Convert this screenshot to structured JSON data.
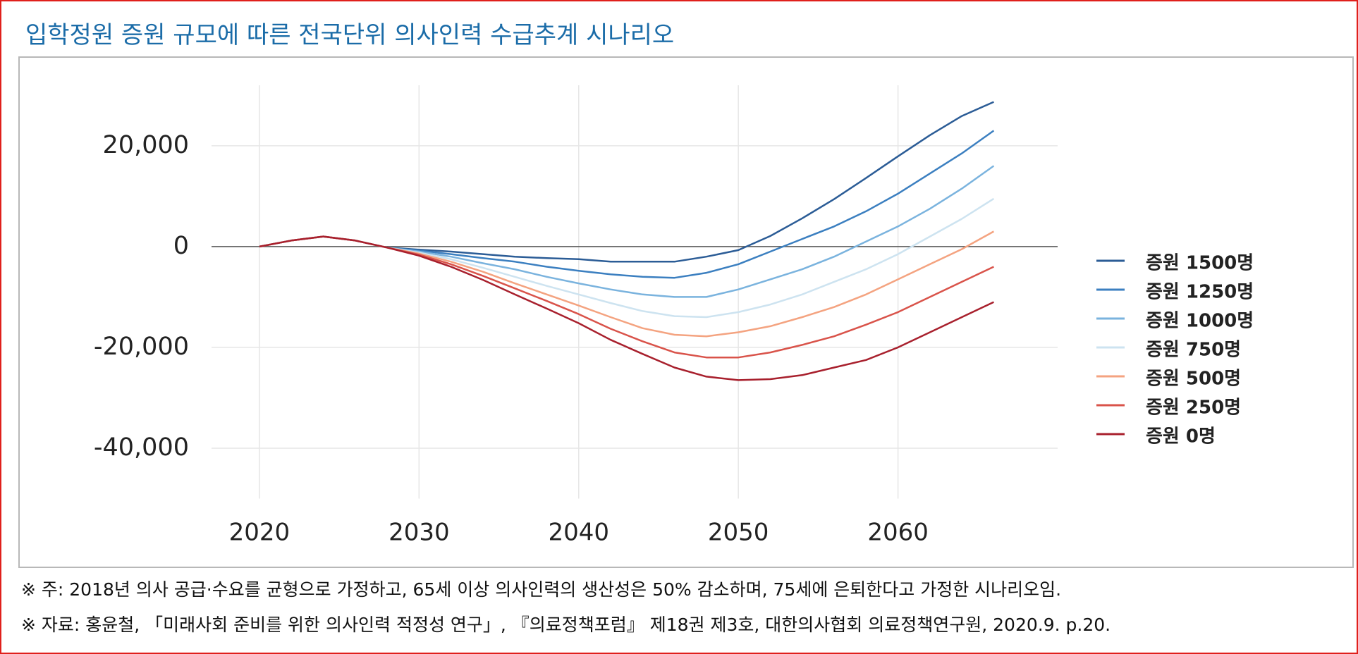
{
  "title": "입학정원 증원 규모에 따른 전국단위 의사인력 수급추계 시나리오",
  "notes": [
    "※ 주: 2018년 의사 공급·수요를 균형으로 가정하고, 65세 이상 의사인력의 생산성은 50% 감소하며, 75세에 은퇴한다고 가정한 시나리오임.",
    "※ 자료: 홍윤철, 「미래사회 준비를 위한 의사인력 적정성 연구」, 『의료정책포럼』 제18권 제3호, 대한의사협회 의료정책연구원, 2020.9. p.20."
  ],
  "chart_data": {
    "type": "line",
    "x": [
      2020,
      2022,
      2024,
      2026,
      2028,
      2030,
      2032,
      2034,
      2036,
      2038,
      2040,
      2042,
      2044,
      2046,
      2048,
      2050,
      2052,
      2054,
      2056,
      2058,
      2060,
      2062,
      2064,
      2066
    ],
    "xlim": [
      2017,
      2070
    ],
    "xticks": [
      2020,
      2030,
      2040,
      2050,
      2060
    ],
    "ylim": [
      -50000,
      32000
    ],
    "yticks": [
      {
        "value": -40000,
        "label": "-40,000"
      },
      {
        "value": -20000,
        "label": "-20,000"
      },
      0,
      {
        "value": 20000,
        "label": "20,000"
      }
    ],
    "grid": true,
    "series": [
      {
        "name": "증원 1500명",
        "color": "#2b5c96",
        "values": [
          0,
          1200,
          2000,
          1200,
          -200,
          -600,
          -1000,
          -1500,
          -2000,
          -2300,
          -2500,
          -3000,
          -3000,
          -3000,
          -2000,
          -700,
          2100,
          5600,
          9400,
          13600,
          17900,
          22100,
          25900,
          28700
        ]
      },
      {
        "name": "증원 1250명",
        "color": "#3b7fc0",
        "values": [
          0,
          1200,
          2000,
          1200,
          -200,
          -800,
          -1500,
          -2300,
          -3000,
          -4000,
          -4800,
          -5500,
          -6000,
          -6200,
          -5200,
          -3500,
          -1000,
          1500,
          4000,
          7000,
          10500,
          14500,
          18500,
          23000
        ]
      },
      {
        "name": "증원 1000명",
        "color": "#7ab3de",
        "values": [
          0,
          1200,
          2000,
          1200,
          -200,
          -1000,
          -2000,
          -3300,
          -4500,
          -6000,
          -7300,
          -8500,
          -9500,
          -10000,
          -10000,
          -8500,
          -6500,
          -4500,
          -2000,
          1000,
          4000,
          7500,
          11500,
          16000
        ]
      },
      {
        "name": "증원 750명",
        "color": "#cde3f0",
        "values": [
          0,
          1200,
          2000,
          1200,
          -200,
          -1200,
          -2500,
          -4200,
          -6000,
          -7800,
          -9500,
          -11200,
          -12800,
          -13800,
          -14000,
          -13000,
          -11500,
          -9500,
          -7000,
          -4500,
          -1500,
          2000,
          5500,
          9500
        ]
      },
      {
        "name": "증원 500명",
        "color": "#f4a380",
        "values": [
          0,
          1200,
          2000,
          1200,
          -200,
          -1400,
          -3000,
          -5000,
          -7300,
          -9500,
          -11700,
          -14000,
          -16200,
          -17500,
          -17800,
          -17000,
          -15800,
          -14000,
          -12000,
          -9500,
          -6500,
          -3500,
          -500,
          3000
        ]
      },
      {
        "name": "증원 250명",
        "color": "#d9534a",
        "values": [
          0,
          1200,
          2000,
          1200,
          -200,
          -1600,
          -3500,
          -5800,
          -8300,
          -10800,
          -13400,
          -16300,
          -18800,
          -21000,
          -22000,
          -22000,
          -21000,
          -19500,
          -17800,
          -15500,
          -13000,
          -10000,
          -7000,
          -4000
        ]
      },
      {
        "name": "증원 0명",
        "color": "#a8202d",
        "values": [
          0,
          1200,
          2000,
          1200,
          -200,
          -1800,
          -4000,
          -6600,
          -9500,
          -12300,
          -15200,
          -18500,
          -21300,
          -24000,
          -25800,
          -26500,
          -26300,
          -25500,
          -24000,
          -22500,
          -20000,
          -17000,
          -14000,
          -11000
        ]
      }
    ]
  }
}
